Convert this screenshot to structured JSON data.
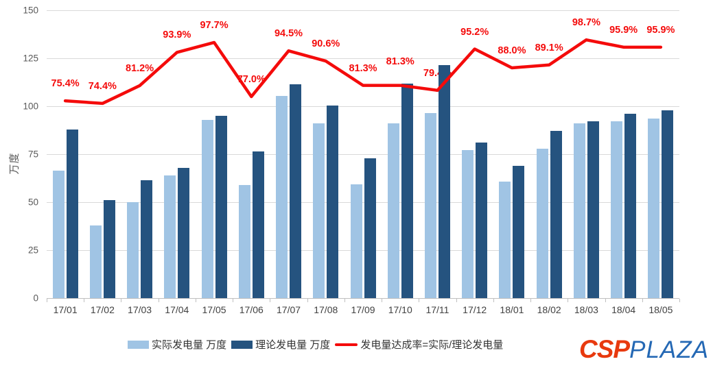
{
  "chart_data": {
    "type": "combo-bar-line",
    "categories": [
      "17/01",
      "17/02",
      "17/03",
      "17/04",
      "17/05",
      "17/06",
      "17/07",
      "17/08",
      "17/09",
      "17/10",
      "17/11",
      "17/12",
      "18/01",
      "18/02",
      "18/03",
      "18/04",
      "18/05"
    ],
    "series": [
      {
        "name": "实际发电量 万度",
        "type": "bar",
        "color": "#a0c4e4",
        "values": [
          66.4,
          38,
          50,
          63.8,
          92.8,
          59,
          105.4,
          91,
          59.3,
          91,
          96.5,
          77.2,
          60.6,
          77.8,
          91,
          92.1,
          93.7
        ]
      },
      {
        "name": "理论发电量 万度",
        "type": "bar",
        "color": "#25537f",
        "values": [
          88,
          51.1,
          61.6,
          68,
          95,
          76.6,
          111.5,
          100.4,
          73,
          111.9,
          121.5,
          81.1,
          68.9,
          87.3,
          92.2,
          96,
          97.7
        ]
      },
      {
        "name": "发电量达成率=实际/理论发电量",
        "type": "line",
        "color": "#f40b0b",
        "axis": "secondary",
        "values": [
          75.4,
          74.4,
          81.2,
          93.9,
          97.7,
          77.0,
          94.5,
          90.6,
          81.3,
          81.3,
          79.4,
          95.2,
          88.0,
          89.1,
          98.7,
          95.9,
          95.9
        ],
        "labels": [
          "75.4%",
          "74.4%",
          "81.2%",
          "93.9%",
          "97.7%",
          "77.0%",
          "94.5%",
          "90.6%",
          "81.3%",
          "81.3%",
          "79.4%",
          "95.2%",
          "88.0%",
          "89.1%",
          "98.7%",
          "95.9%",
          "95.9%"
        ]
      }
    ],
    "y_axis": {
      "label": "万度",
      "min": 0,
      "max": 150,
      "ticks": [
        0,
        25,
        50,
        75,
        100,
        125,
        150
      ]
    },
    "secondary_axis": {
      "min": 0,
      "max": 110,
      "visible": false,
      "unit": "%"
    },
    "grid": true,
    "legend_position": "bottom"
  },
  "legend": {
    "items": [
      {
        "label": "实际发电量 万度",
        "marker": "bar-swatch",
        "color": "#a0c4e4"
      },
      {
        "label": "理论发电量 万度",
        "marker": "bar-swatch",
        "color": "#25537f"
      },
      {
        "label": "发电量达成率=实际/理论发电量",
        "marker": "line-swatch",
        "color": "#f40b0b"
      }
    ]
  },
  "logo": {
    "csp_text": "CSP",
    "plaza_text": "PLAZA",
    "csp_color": "#e8390e",
    "plaza_color": "#2468b4"
  }
}
